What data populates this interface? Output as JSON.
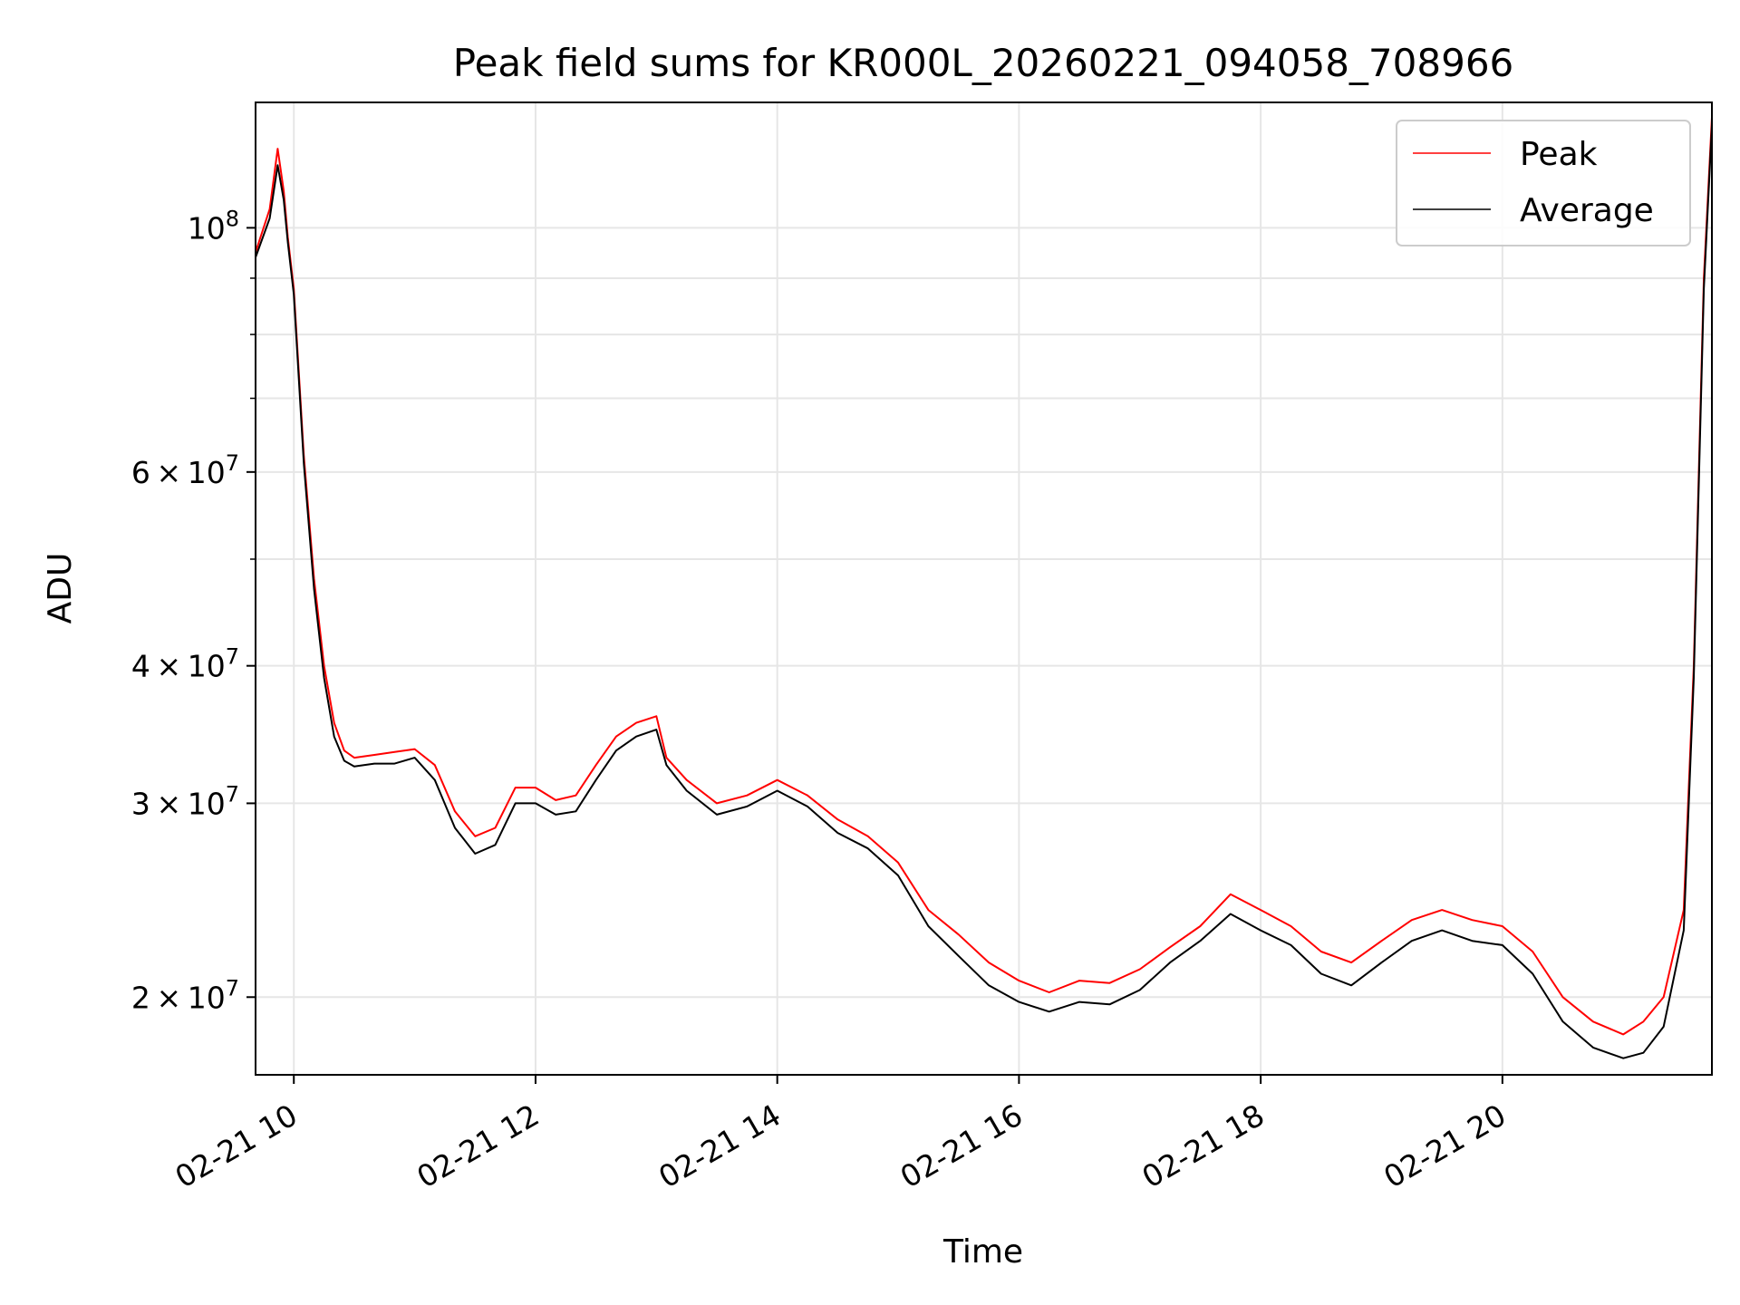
{
  "chart_data": {
    "type": "line",
    "title": "Peak field sums for KR000L_20260221_094058_708966",
    "xlabel": "Time",
    "ylabel": "ADU",
    "yscale": "log",
    "xlim": [
      "02-21 09:41",
      "02-21 21:44"
    ],
    "ylim": [
      17000000,
      130000000
    ],
    "grid": true,
    "legend": "top-right",
    "x_ticks": [
      {
        "at": "02-21 10:00",
        "label": "02-21 10"
      },
      {
        "at": "02-21 12:00",
        "label": "02-21 12"
      },
      {
        "at": "02-21 14:00",
        "label": "02-21 14"
      },
      {
        "at": "02-21 16:00",
        "label": "02-21 16"
      },
      {
        "at": "02-21 18:00",
        "label": "02-21 18"
      },
      {
        "at": "02-21 20:00",
        "label": "02-21 20"
      }
    ],
    "y_ticks": [
      {
        "value": 20000000,
        "base": "2",
        "exp": "7"
      },
      {
        "value": 30000000,
        "base": "3",
        "exp": "7"
      },
      {
        "value": 40000000,
        "base": "4",
        "exp": "7"
      },
      {
        "value": 60000000,
        "base": "6",
        "exp": "7"
      },
      {
        "value": 100000000,
        "base": "",
        "exp": "8"
      }
    ],
    "y_times_symbol": "×",
    "y_ten": "10",
    "y_minor_ticks": [
      50000000,
      70000000,
      80000000,
      90000000
    ],
    "x": [
      "02-21 09:41",
      "02-21 09:48",
      "02-21 09:52",
      "02-21 09:55",
      "02-21 09:57",
      "02-21 10:00",
      "02-21 10:05",
      "02-21 10:10",
      "02-21 10:15",
      "02-21 10:20",
      "02-21 10:25",
      "02-21 10:30",
      "02-21 10:40",
      "02-21 10:50",
      "02-21 11:00",
      "02-21 11:10",
      "02-21 11:20",
      "02-21 11:30",
      "02-21 11:40",
      "02-21 11:50",
      "02-21 12:00",
      "02-21 12:10",
      "02-21 12:20",
      "02-21 12:30",
      "02-21 12:40",
      "02-21 12:50",
      "02-21 13:00",
      "02-21 13:05",
      "02-21 13:15",
      "02-21 13:30",
      "02-21 13:45",
      "02-21 14:00",
      "02-21 14:15",
      "02-21 14:30",
      "02-21 14:45",
      "02-21 15:00",
      "02-21 15:15",
      "02-21 15:30",
      "02-21 15:45",
      "02-21 16:00",
      "02-21 16:15",
      "02-21 16:30",
      "02-21 16:45",
      "02-21 17:00",
      "02-21 17:15",
      "02-21 17:30",
      "02-21 17:45",
      "02-21 18:00",
      "02-21 18:15",
      "02-21 18:30",
      "02-21 18:45",
      "02-21 19:00",
      "02-21 19:15",
      "02-21 19:30",
      "02-21 19:45",
      "02-21 20:00",
      "02-21 20:15",
      "02-21 20:30",
      "02-21 20:45",
      "02-21 21:00",
      "02-21 21:10",
      "02-21 21:20",
      "02-21 21:30",
      "02-21 21:35",
      "02-21 21:40",
      "02-21 21:44"
    ],
    "series": [
      {
        "name": "Peak",
        "color": "#ff0000",
        "values": [
          95000000,
          104000000,
          118000000,
          108000000,
          98000000,
          88000000,
          62000000,
          48000000,
          40000000,
          35500000,
          33500000,
          33000000,
          33200000,
          33400000,
          33600000,
          32500000,
          29500000,
          28000000,
          28500000,
          31000000,
          31000000,
          30200000,
          30500000,
          32500000,
          34500000,
          35500000,
          36000000,
          33000000,
          31500000,
          30000000,
          30500000,
          31500000,
          30500000,
          29000000,
          28000000,
          26500000,
          24000000,
          22800000,
          21500000,
          20700000,
          20200000,
          20700000,
          20600000,
          21200000,
          22200000,
          23200000,
          24800000,
          24000000,
          23200000,
          22000000,
          21500000,
          22500000,
          23500000,
          24000000,
          23500000,
          23200000,
          22000000,
          20000000,
          19000000,
          18500000,
          19000000,
          20000000,
          24000000,
          40000000,
          90000000,
          126000000
        ]
      },
      {
        "name": "Average",
        "color": "#000000",
        "values": [
          94000000,
          102000000,
          114000000,
          106000000,
          97000000,
          87000000,
          61000000,
          47000000,
          39000000,
          34500000,
          32800000,
          32400000,
          32600000,
          32600000,
          33000000,
          31500000,
          28500000,
          27000000,
          27500000,
          30000000,
          30000000,
          29300000,
          29500000,
          31500000,
          33500000,
          34500000,
          35000000,
          32500000,
          30800000,
          29300000,
          29800000,
          30800000,
          29800000,
          28200000,
          27300000,
          25800000,
          23200000,
          21800000,
          20500000,
          19800000,
          19400000,
          19800000,
          19700000,
          20300000,
          21500000,
          22500000,
          23800000,
          23000000,
          22300000,
          21000000,
          20500000,
          21500000,
          22500000,
          23000000,
          22500000,
          22300000,
          21000000,
          19000000,
          18000000,
          17600000,
          17800000,
          18800000,
          23000000,
          39000000,
          88000000,
          124000000
        ]
      }
    ]
  }
}
